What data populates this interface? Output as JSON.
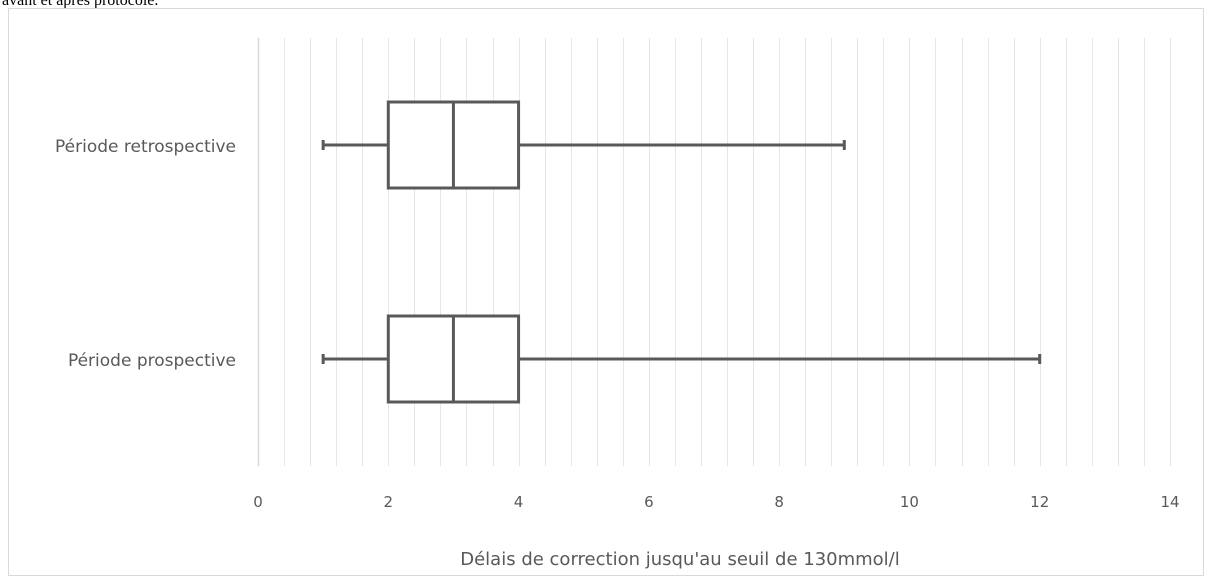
{
  "caption": "avant et après protocole.",
  "chart_data": {
    "type": "boxplot",
    "orientation": "horizontal",
    "title": "",
    "xlabel": "Délais de correction jusqu'au seuil de 130mmol/l",
    "ylabel": "",
    "xlim": [
      0,
      14
    ],
    "xticks": [
      0,
      2,
      4,
      6,
      8,
      10,
      12,
      14
    ],
    "minor_grid_step": 0.4,
    "grid": true,
    "legend": "none",
    "categories": [
      "Période retrospective",
      "Période prospective"
    ],
    "boxes": [
      {
        "category": "Période retrospective",
        "min": 1,
        "q1": 2,
        "median": 3,
        "q3": 4,
        "max": 9
      },
      {
        "category": "Période prospective",
        "min": 1,
        "q1": 2,
        "median": 3,
        "q3": 4,
        "max": 12
      }
    ],
    "colors": {
      "box": "#595959",
      "grid": "#e6e6e6",
      "axis": "#d9d9d9",
      "text": "#595959"
    }
  }
}
